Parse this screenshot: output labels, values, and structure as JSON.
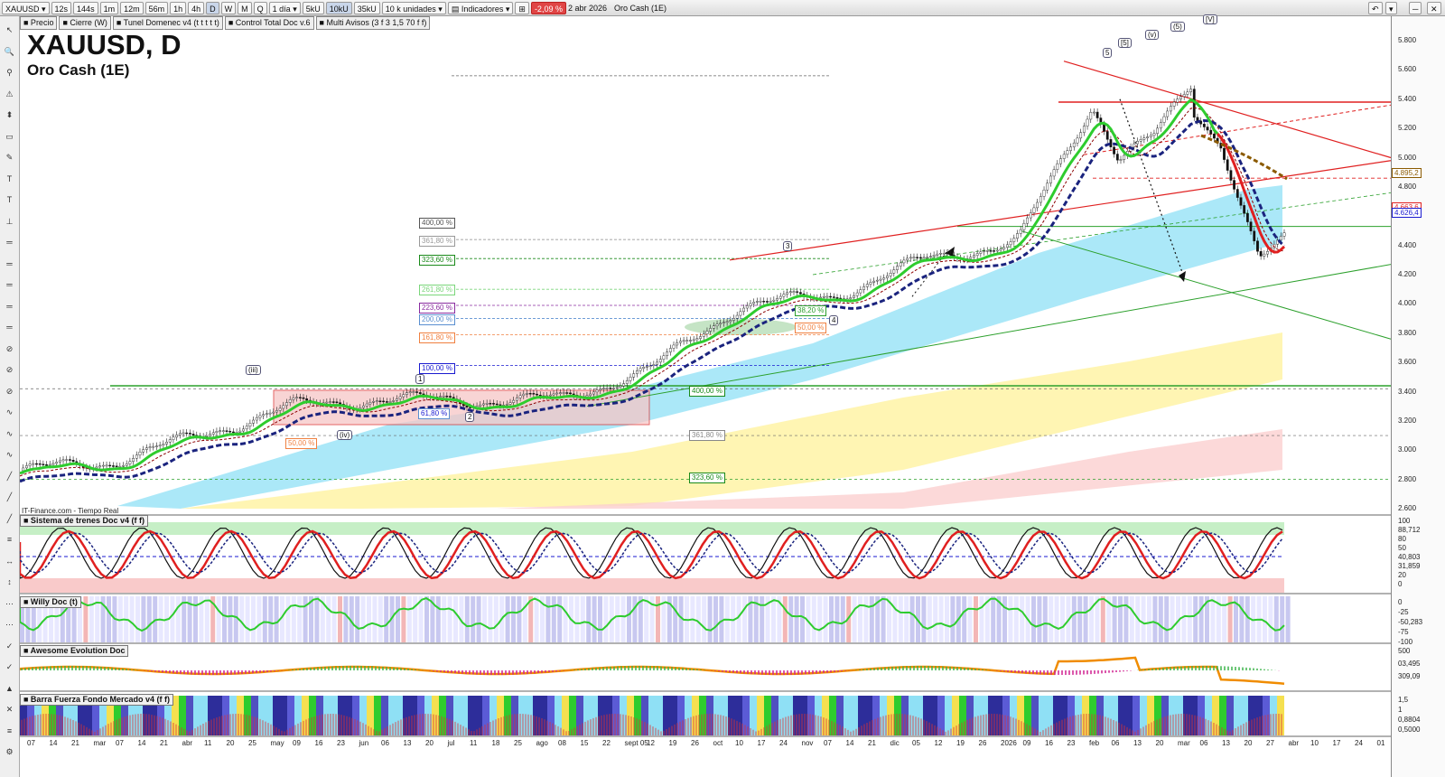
{
  "toolbar": {
    "symbol": "XAUUSD",
    "timeframes": [
      "12s",
      "144s",
      "1m",
      "12m",
      "56m",
      "1h",
      "4h",
      "D",
      "W",
      "M",
      "Q"
    ],
    "active_timeframe": "D",
    "period": "1 día",
    "volume_buttons": [
      "5kU",
      "10kU",
      "35kU"
    ],
    "active_volume": "10kU",
    "units": "10 k unidades",
    "indicators_label": "Indicadores",
    "change_pct": "-2,09 %",
    "date": "2 abr 2026",
    "instrument_name": "Oro Cash (1E)"
  },
  "legend_tabs": [
    "Precio",
    "Cierre (W)",
    "Tunel Domenec v4 (t t t t t)",
    "Control Total Doc v.6",
    "Multi Avisos (3 f 3 1,5 70 f f)"
  ],
  "header": {
    "title": "XAUUSD, D",
    "subtitle": "Oro Cash (1E)"
  },
  "source_label": "IT-Finance.com - Tiempo Real",
  "price_axis": {
    "ticks": [
      "5.800",
      "5.600",
      "5.400",
      "5.200",
      "5.000",
      "4.800",
      "4.600",
      "4.400",
      "4.200",
      "4.000",
      "3.800",
      "3.600",
      "3.400",
      "3.200",
      "3.000",
      "2.800",
      "2.600"
    ],
    "tags": {
      "level_a": "4.895,2",
      "level_b": "4.663,6",
      "level_c": "4.626,4"
    }
  },
  "fib_labels_upper": [
    "400,00 %",
    "361,80 %",
    "323,60 %",
    "261,80 %",
    "223,60 %",
    "200,00 %",
    "161,80 %",
    "100,00 %"
  ],
  "fib_labels_lower": [
    "400,00 %",
    "361,80 %",
    "323,60 %"
  ],
  "small_labels": {
    "fib_618": "61,80 %",
    "fib_50_a": "50,00 %",
    "fib_50_b": "50,00 %",
    "fib_382": "38,20 %"
  },
  "wave_labels": [
    "(iii)",
    "(iv)",
    "1",
    "2",
    "3",
    "4",
    "5",
    "[5]",
    "(v)",
    "(5)",
    "[V]"
  ],
  "panels": [
    {
      "title": "Sistema de trenes Doc v4 (f f)",
      "ticks": [
        "100",
        "88,712",
        "80",
        "50",
        "40,803",
        "31,859",
        "20",
        "0"
      ]
    },
    {
      "title": "Willy Doc (t)",
      "ticks": [
        "0",
        "-25",
        "-50,283",
        "-75",
        "-100"
      ]
    },
    {
      "title": "Awesome Evolution Doc",
      "ticks": [
        "500",
        "03,495",
        "309,09"
      ]
    },
    {
      "title": "Barra Fuerza Fondo Mercado v4 (f f)",
      "ticks": [
        "1,5",
        "1",
        "0,8804",
        "0,5000"
      ]
    }
  ],
  "x_axis": [
    "07",
    "14",
    "21",
    "mar",
    "07",
    "14",
    "21",
    "abr",
    "11",
    "20",
    "25",
    "may",
    "09",
    "16",
    "23",
    "jun",
    "06",
    "13",
    "20",
    "jul",
    "11",
    "18",
    "25",
    "ago",
    "08",
    "15",
    "22",
    "sept 05",
    "12",
    "19",
    "26",
    "oct",
    "10",
    "17",
    "24",
    "nov",
    "07",
    "14",
    "21",
    "dic",
    "05",
    "12",
    "19",
    "26",
    "2026",
    "09",
    "16",
    "23",
    "feb",
    "06",
    "13",
    "20",
    "mar",
    "06",
    "13",
    "20",
    "27",
    "abr",
    "10",
    "17",
    "24",
    "01"
  ],
  "colors": {
    "up": "#2ecc2e",
    "down": "#e02020",
    "navy": "#1a237e",
    "cyan": "#8fe0f5",
    "yellow": "#fff3a0",
    "pink": "#fbd0d0"
  },
  "chart_data": {
    "type": "line",
    "title": "XAUUSD, D",
    "xlabel": "",
    "ylabel": "",
    "ylim": [
      2600,
      5800
    ],
    "x": [
      "feb",
      "mar",
      "abr",
      "may",
      "jun",
      "jul",
      "ago",
      "sept",
      "oct",
      "nov",
      "dic",
      "2026",
      "feb",
      "mar",
      "abr"
    ],
    "series": [
      {
        "name": "",
        "values": [
          2860,
          2920,
          3100,
          3300,
          3350,
          3340,
          3350,
          3560,
          4000,
          4050,
          4300,
          4420,
          4950,
          5300,
          4650
        ]
      }
    ]
  }
}
